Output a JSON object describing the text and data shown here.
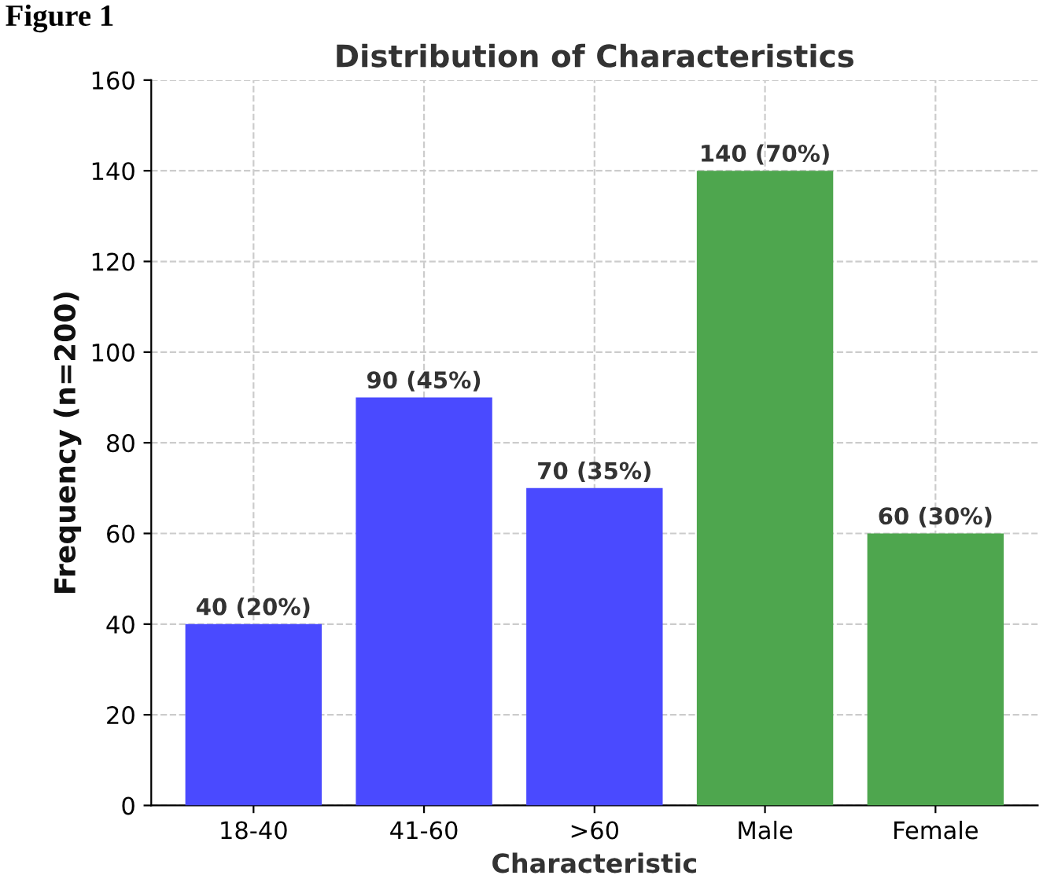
{
  "chart_data": {
    "type": "bar",
    "title": "Distribution of Characteristics",
    "xlabel": "Characteristic",
    "ylabel": "Frequency (n=200)",
    "annotations": [
      "Figure 1"
    ],
    "categories": [
      "18-40",
      "41-60",
      ">60",
      "Male",
      "Female"
    ],
    "values": [
      40,
      90,
      70,
      140,
      60
    ],
    "colors": [
      "#4a4aff",
      "#4a4aff",
      "#4a4aff",
      "#4ea64e",
      "#4ea64e"
    ],
    "value_labels": [
      "40 (20%)",
      "90 (45%)",
      "70 (35%)",
      "140 (70%)",
      "60 (30%)"
    ],
    "ylim": [
      0,
      160
    ],
    "yticks": [
      0,
      20,
      40,
      60,
      80,
      100,
      120,
      140,
      160
    ],
    "grid": true
  }
}
